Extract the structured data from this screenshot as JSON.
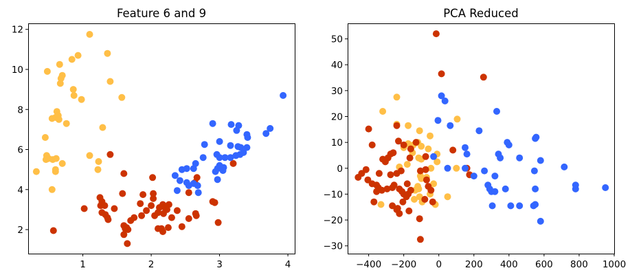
{
  "colors": {
    "yellow": "#FFBF47",
    "red": "#CC3300",
    "blue": "#3366FF"
  },
  "chart_data": [
    {
      "type": "scatter",
      "title": "Feature 6 and 9",
      "xlabel": "",
      "ylabel": "",
      "xlim": [
        0.2,
        4.1
      ],
      "ylim": [
        0.8,
        12.3
      ],
      "xticks": [
        1,
        2,
        3,
        4
      ],
      "yticks": [
        2,
        4,
        6,
        8,
        10,
        12
      ],
      "grid": false,
      "series": [
        {
          "color": "yellow",
          "points": [
            [
              1.1,
              11.75
            ],
            [
              1.36,
              10.8
            ],
            [
              0.93,
              10.7
            ],
            [
              0.84,
              10.5
            ],
            [
              0.48,
              9.9
            ],
            [
              0.66,
              10.25
            ],
            [
              0.7,
              9.7
            ],
            [
              0.68,
              9.55
            ],
            [
              0.67,
              9.3
            ],
            [
              1.4,
              9.4
            ],
            [
              0.86,
              9.0
            ],
            [
              0.87,
              8.7
            ],
            [
              0.98,
              8.5
            ],
            [
              1.57,
              8.6
            ],
            [
              0.62,
              7.9
            ],
            [
              0.6,
              7.6
            ],
            [
              0.64,
              7.7
            ],
            [
              0.65,
              7.5
            ],
            [
              0.55,
              7.55
            ],
            [
              0.76,
              7.3
            ],
            [
              1.29,
              7.1
            ],
            [
              0.45,
              6.6
            ],
            [
              1.1,
              5.7
            ],
            [
              0.47,
              5.7
            ],
            [
              0.46,
              5.5
            ],
            [
              0.5,
              5.55
            ],
            [
              0.61,
              5.55
            ],
            [
              0.56,
              5.5
            ],
            [
              0.7,
              5.3
            ],
            [
              1.23,
              5.4
            ],
            [
              1.22,
              5.0
            ],
            [
              0.6,
              5.0
            ],
            [
              0.6,
              4.9
            ],
            [
              0.32,
              4.9
            ],
            [
              0.55,
              4.0
            ]
          ]
        },
        {
          "color": "red",
          "points": [
            [
              1.4,
              5.75
            ],
            [
              1.6,
              4.8
            ],
            [
              1.58,
              3.8
            ],
            [
              1.25,
              3.6
            ],
            [
              1.28,
              3.4
            ],
            [
              1.26,
              3.2
            ],
            [
              1.32,
              3.2
            ],
            [
              1.02,
              3.05
            ],
            [
              1.46,
              3.05
            ],
            [
              1.28,
              2.85
            ],
            [
              1.33,
              2.75
            ],
            [
              1.36,
              2.6
            ],
            [
              1.37,
              2.5
            ],
            [
              1.6,
              2.2
            ],
            [
              1.62,
              2.05
            ],
            [
              1.64,
              2.1
            ],
            [
              1.66,
              2.0
            ],
            [
              1.6,
              1.75
            ],
            [
              1.65,
              1.3
            ],
            [
              0.57,
              1.95
            ],
            [
              1.88,
              3.75
            ],
            [
              2.03,
              3.8
            ],
            [
              1.84,
              3.3
            ],
            [
              2.0,
              3.2
            ],
            [
              2.03,
              3.55
            ],
            [
              1.86,
              2.7
            ],
            [
              1.93,
              2.95
            ],
            [
              1.75,
              2.6
            ],
            [
              1.7,
              2.45
            ],
            [
              2.05,
              2.7
            ],
            [
              2.1,
              2.85
            ],
            [
              2.12,
              3.1
            ],
            [
              2.17,
              3.25
            ],
            [
              2.2,
              3.1
            ],
            [
              2.26,
              3.25
            ],
            [
              2.23,
              3.0
            ],
            [
              2.18,
              2.8
            ],
            [
              2.1,
              2.05
            ],
            [
              2.15,
              2.05
            ],
            [
              2.17,
              1.9
            ],
            [
              2.25,
              2.1
            ],
            [
              2.3,
              2.6
            ],
            [
              2.38,
              2.95
            ],
            [
              2.45,
              2.15
            ],
            [
              2.55,
              2.55
            ],
            [
              2.66,
              2.7
            ],
            [
              2.65,
              2.8
            ],
            [
              2.67,
              4.6
            ],
            [
              2.64,
              4.35
            ],
            [
              2.55,
              3.85
            ],
            [
              2.9,
              3.4
            ],
            [
              2.93,
              3.35
            ],
            [
              2.98,
              2.35
            ],
            [
              3.2,
              5.3
            ],
            [
              2.02,
              4.6
            ]
          ]
        },
        {
          "color": "blue",
          "points": [
            [
              3.93,
              8.7
            ],
            [
              2.9,
              7.3
            ],
            [
              3.17,
              7.25
            ],
            [
              3.28,
              7.2
            ],
            [
              3.25,
              6.95
            ],
            [
              3.4,
              6.75
            ],
            [
              3.41,
              6.6
            ],
            [
              3.74,
              7.05
            ],
            [
              3.68,
              6.8
            ],
            [
              2.78,
              6.25
            ],
            [
              3.0,
              6.4
            ],
            [
              3.16,
              6.2
            ],
            [
              3.27,
              6.15
            ],
            [
              3.31,
              6.1
            ],
            [
              3.4,
              6.1
            ],
            [
              3.0,
              5.6
            ],
            [
              3.08,
              5.6
            ],
            [
              3.16,
              5.6
            ],
            [
              3.24,
              5.7
            ],
            [
              3.3,
              5.75
            ],
            [
              2.76,
              5.6
            ],
            [
              2.65,
              5.3
            ],
            [
              3.0,
              5.2
            ],
            [
              2.97,
              5.05
            ],
            [
              3.06,
              5.1
            ],
            [
              2.94,
              4.9
            ],
            [
              3.05,
              4.95
            ],
            [
              2.62,
              5.05
            ],
            [
              2.45,
              5.0
            ],
            [
              2.52,
              5.05
            ],
            [
              2.35,
              4.7
            ],
            [
              2.42,
              4.45
            ],
            [
              2.52,
              4.35
            ],
            [
              2.55,
              4.2
            ],
            [
              2.62,
              4.3
            ],
            [
              2.68,
              4.2
            ],
            [
              2.69,
              3.85
            ],
            [
              2.38,
              3.95
            ],
            [
              2.97,
              4.5
            ],
            [
              2.96,
              5.75
            ],
            [
              3.35,
              5.85
            ]
          ]
        }
      ]
    },
    {
      "type": "scatter",
      "title": "PCA Reduced",
      "xlabel": "",
      "ylabel": "",
      "xlim": [
        -520,
        1000
      ],
      "ylim": [
        -33,
        56
      ],
      "xticks": [
        -400,
        -200,
        0,
        200,
        400,
        600,
        800,
        1000
      ],
      "yticks": [
        -30,
        -20,
        -10,
        0,
        10,
        20,
        30,
        40,
        50
      ],
      "grid": false,
      "series": [
        {
          "color": "yellow",
          "points": [
            [
              -240,
              27.5
            ],
            [
              -320,
              22
            ],
            [
              -240,
              17
            ],
            [
              -175,
              16.5
            ],
            [
              -110,
              14.5
            ],
            [
              -50,
              12.5
            ],
            [
              -120,
              10
            ],
            [
              -145,
              9
            ],
            [
              -175,
              9.5
            ],
            [
              -100,
              8.5
            ],
            [
              -200,
              8
            ],
            [
              -60,
              7.5
            ],
            [
              -150,
              6
            ],
            [
              -10,
              5.5
            ],
            [
              -115,
              4
            ],
            [
              -100,
              3.5
            ],
            [
              -180,
              1.5
            ],
            [
              -225,
              0.5
            ],
            [
              -45,
              0
            ],
            [
              -10,
              2.5
            ],
            [
              100,
              0
            ],
            [
              105,
              19
            ],
            [
              -105,
              -3
            ],
            [
              -100,
              -4
            ],
            [
              -70,
              -3.5
            ],
            [
              -30,
              -6
            ],
            [
              -120,
              -7
            ],
            [
              -115,
              -8
            ],
            [
              -135,
              -8.5
            ],
            [
              -110,
              -11
            ],
            [
              -140,
              -12
            ],
            [
              -95,
              -13
            ],
            [
              -50,
              -10
            ],
            [
              50,
              -11
            ],
            [
              -330,
              -14
            ],
            [
              -20,
              -14
            ]
          ]
        },
        {
          "color": "red",
          "points": [
            [
              -15,
              52
            ],
            [
              15,
              36.5
            ],
            [
              255,
              35.2
            ],
            [
              -400,
              15.2
            ],
            [
              -240,
              16.5
            ],
            [
              -380,
              9
            ],
            [
              -230,
              10.5
            ],
            [
              -260,
              6
            ],
            [
              -275,
              5.5
            ],
            [
              -290,
              4
            ],
            [
              -305,
              2.5
            ],
            [
              -320,
              3.5
            ],
            [
              -130,
              10
            ],
            [
              -160,
              7.5
            ],
            [
              -200,
              9
            ],
            [
              -165,
              4
            ],
            [
              -75,
              4.5
            ],
            [
              -75,
              -0.5
            ],
            [
              -105,
              -1
            ],
            [
              -215,
              -1
            ],
            [
              -240,
              -2
            ],
            [
              -275,
              -2.5
            ],
            [
              -340,
              -2
            ],
            [
              -415,
              -0.5
            ],
            [
              -440,
              -2
            ],
            [
              -460,
              -3.5
            ],
            [
              -405,
              -4.5
            ],
            [
              -380,
              -6
            ],
            [
              -355,
              -6.5
            ],
            [
              -345,
              -7.5
            ],
            [
              -325,
              -8.5
            ],
            [
              -355,
              -9
            ],
            [
              -295,
              -8
            ],
            [
              -265,
              -7.5
            ],
            [
              -255,
              -6.5
            ],
            [
              -225,
              -8
            ],
            [
              -210,
              -9
            ],
            [
              -200,
              -10
            ],
            [
              -180,
              -6
            ],
            [
              -160,
              -8.5
            ],
            [
              -175,
              -10
            ],
            [
              -185,
              -11
            ],
            [
              -70,
              -4.5
            ],
            [
              -60,
              -7
            ],
            [
              -45,
              -8.5
            ],
            [
              -80,
              -12
            ],
            [
              -35,
              -13
            ],
            [
              -205,
              -13
            ],
            [
              -265,
              -14.5
            ],
            [
              -235,
              -15.5
            ],
            [
              -225,
              -17.5
            ],
            [
              -240,
              -16
            ],
            [
              -170,
              -16.5
            ],
            [
              -110,
              -19.5
            ],
            [
              -370,
              -13
            ],
            [
              -105,
              -27.5
            ],
            [
              160,
              0
            ],
            [
              175,
              -2.5
            ],
            [
              80,
              7
            ]
          ]
        },
        {
          "color": "blue",
          "points": [
            [
              15,
              28
            ],
            [
              35,
              26
            ],
            [
              330,
              22
            ],
            [
              -5,
              18.5
            ],
            [
              65,
              16.5
            ],
            [
              230,
              14.5
            ],
            [
              390,
              10
            ],
            [
              400,
              9
            ],
            [
              550,
              11.5
            ],
            [
              555,
              12
            ],
            [
              150,
              8
            ],
            [
              160,
              5.5
            ],
            [
              340,
              5.5
            ],
            [
              350,
              4
            ],
            [
              460,
              4
            ],
            [
              580,
              3
            ],
            [
              -30,
              4.5
            ],
            [
              50,
              0
            ],
            [
              150,
              0
            ],
            [
              200,
              -3
            ],
            [
              260,
              -1
            ],
            [
              320,
              -3
            ],
            [
              545,
              -1
            ],
            [
              715,
              0.5
            ],
            [
              780,
              -6.5
            ],
            [
              780,
              -8
            ],
            [
              950,
              -7.5
            ],
            [
              280,
              -6.5
            ],
            [
              290,
              -8
            ],
            [
              300,
              -9
            ],
            [
              320,
              -9
            ],
            [
              380,
              -8
            ],
            [
              550,
              -8
            ],
            [
              305,
              -14.5
            ],
            [
              410,
              -14.5
            ],
            [
              460,
              -14.5
            ],
            [
              540,
              -14.5
            ],
            [
              550,
              -14
            ],
            [
              580,
              -20.5
            ]
          ]
        }
      ]
    }
  ]
}
